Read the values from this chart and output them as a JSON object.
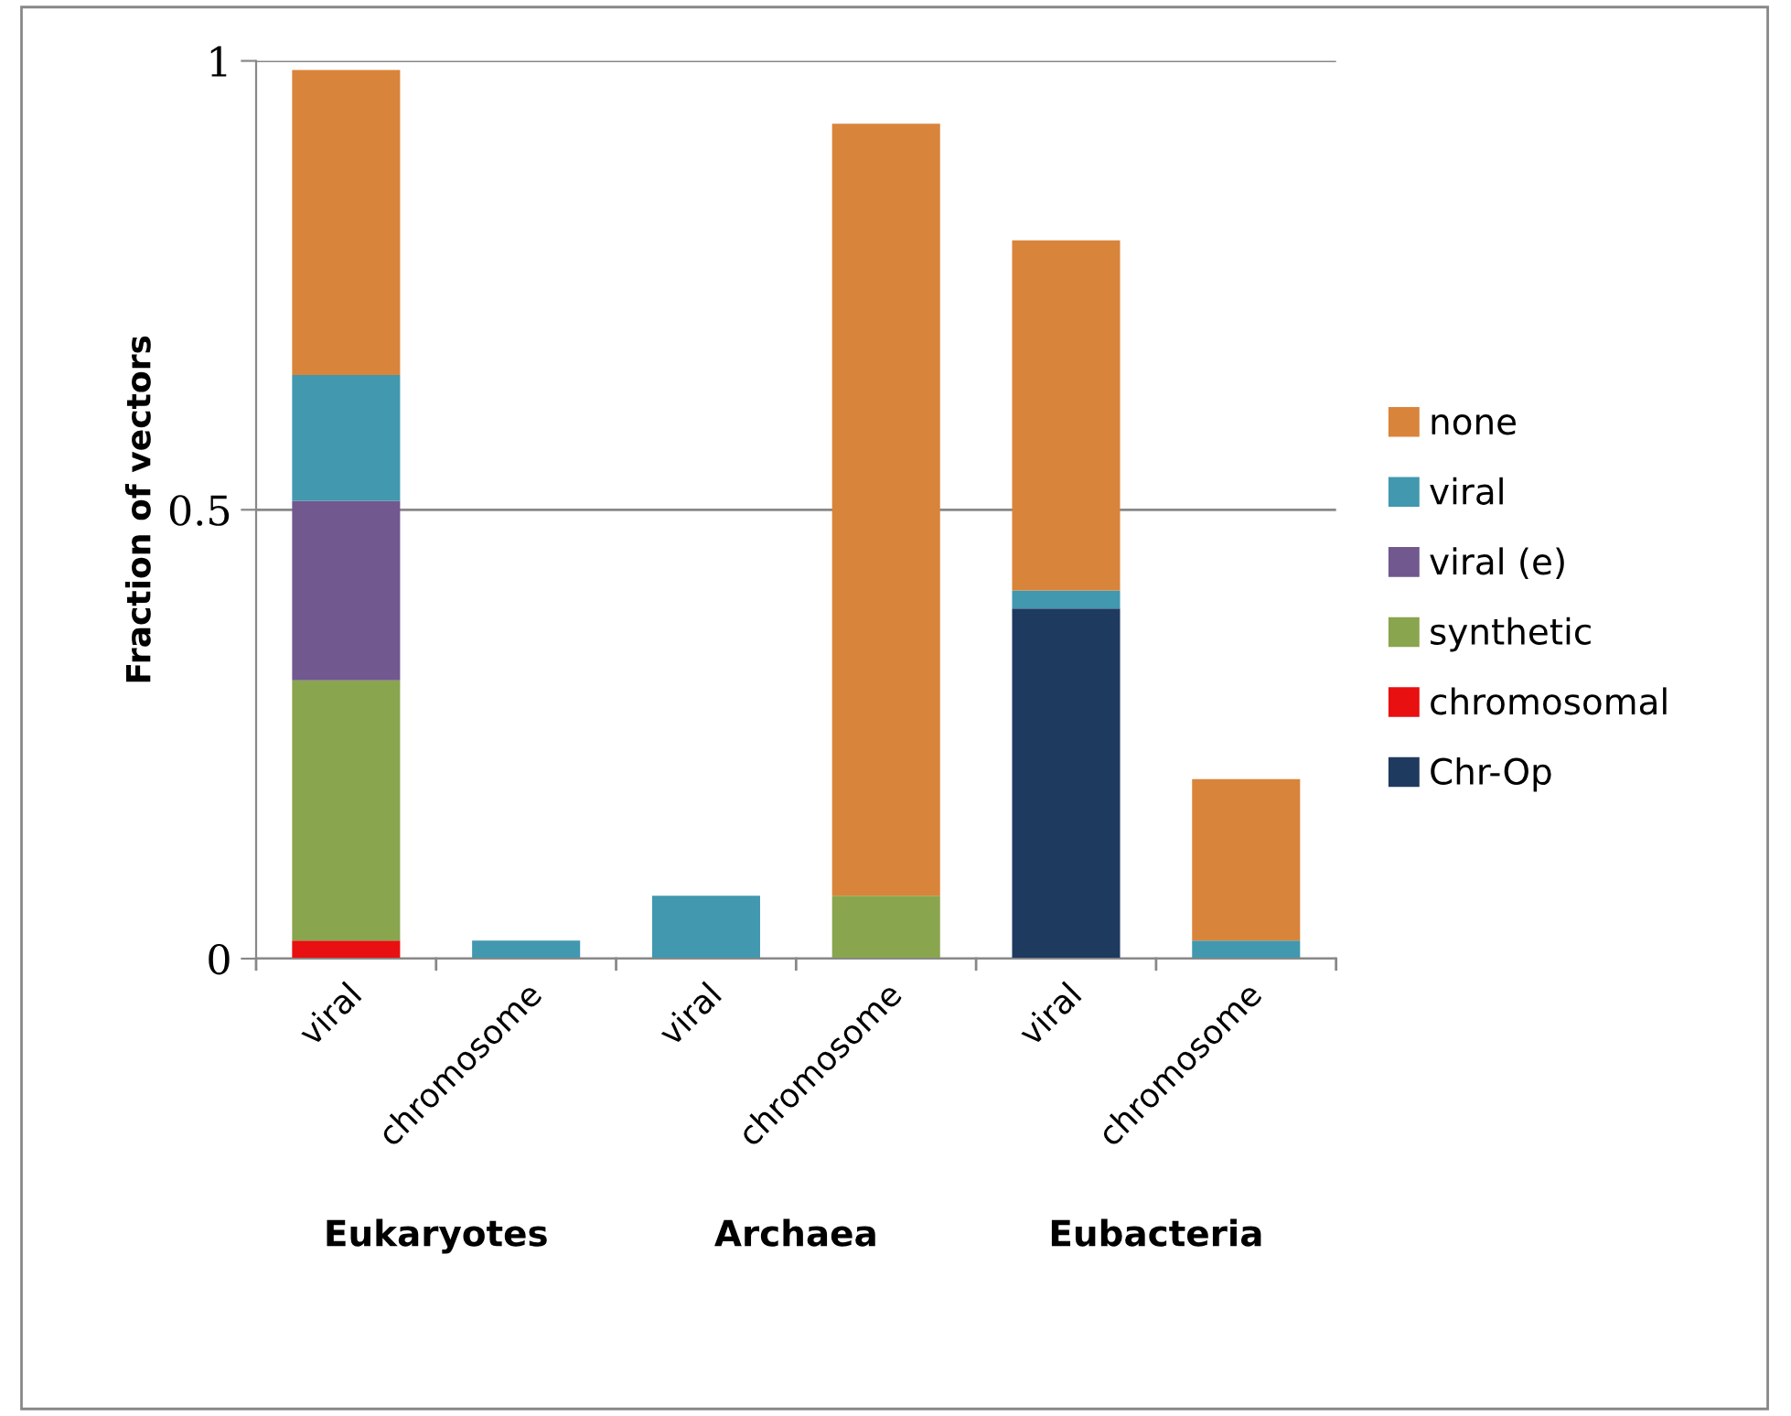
{
  "chart_data": {
    "type": "bar",
    "stacked": true,
    "ylabel": "Fraction of vectors",
    "categories": [
      "viral",
      "chromosome",
      "viral",
      "chromosome",
      "viral",
      "chromosome"
    ],
    "series": [
      {
        "name": "Chr-Op",
        "color": "#1f3a5f",
        "values": [
          0,
          0,
          0,
          0,
          0.39,
          0
        ]
      },
      {
        "name": "chromosomal",
        "color": "#e81010",
        "values": [
          0.02,
          0,
          0,
          0,
          0,
          0
        ]
      },
      {
        "name": "synthetic",
        "color": "#89a54e",
        "values": [
          0.29,
          0,
          0,
          0.07,
          0,
          0
        ]
      },
      {
        "name": "viral (e)",
        "color": "#71588f",
        "values": [
          0.2,
          0,
          0,
          0,
          0,
          0
        ]
      },
      {
        "name": "viral",
        "color": "#4198af",
        "values": [
          0.14,
          0.02,
          0.07,
          0,
          0.02,
          0.02
        ]
      },
      {
        "name": "none",
        "color": "#d9843b",
        "values": [
          0.34,
          0,
          0,
          0.86,
          0.39,
          0.18
        ]
      }
    ],
    "annotations": [
      "Eukaryotes",
      "Archaea",
      "Eubacteria"
    ],
    "ylim": [
      0,
      1
    ],
    "yticks": [
      0,
      0.5,
      1
    ],
    "grid": "y",
    "legend": "right"
  }
}
